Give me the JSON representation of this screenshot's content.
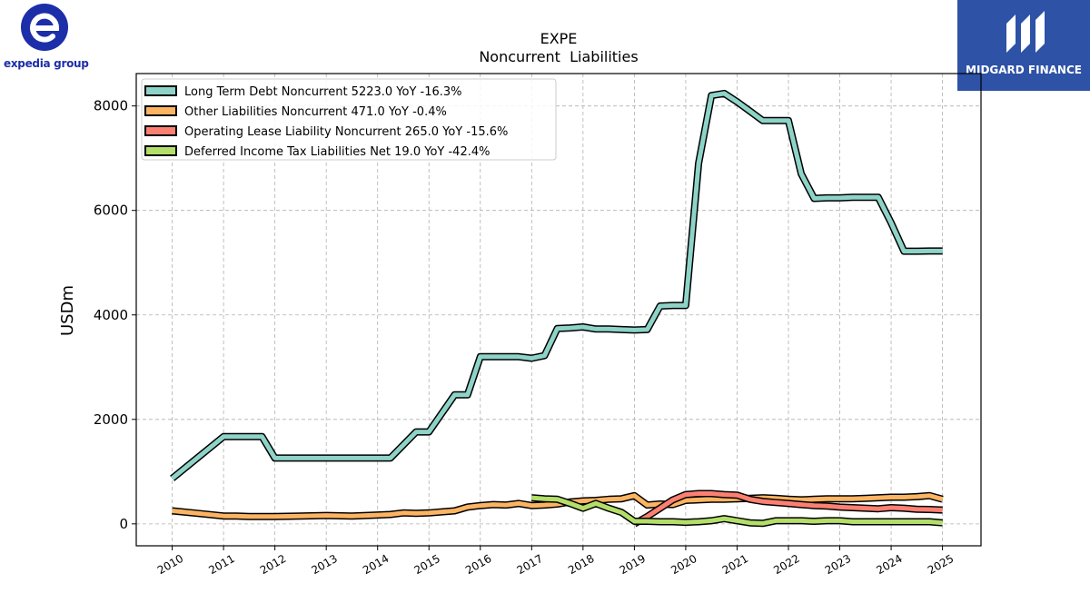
{
  "logos": {
    "left_text": "expedia group",
    "right_text": "MIDGARD FINANCE"
  },
  "chart_data": {
    "type": "line",
    "title": "EXPE",
    "subtitle": "Noncurrent  Liabilities",
    "xlabel": "",
    "ylabel": "USDm",
    "xlim": [
      2009.3,
      2025.75
    ],
    "ylim": [
      -420,
      8620
    ],
    "yticks": [
      0,
      2000,
      4000,
      6000,
      8000
    ],
    "xticks": [
      2010,
      2011,
      2012,
      2013,
      2014,
      2015,
      2016,
      2017,
      2018,
      2019,
      2020,
      2021,
      2022,
      2023,
      2024,
      2025
    ],
    "grid": true,
    "legend_position": "top-left",
    "series": [
      {
        "name": "Long Term Debt Noncurrent  5223.0 YoY -16.3%",
        "color": "#8dd3c7",
        "x": [
          2010.0,
          2011.0,
          2011.75,
          2012.0,
          2013.0,
          2014.0,
          2014.25,
          2014.75,
          2015.0,
          2015.5,
          2015.75,
          2016.0,
          2016.5,
          2016.75,
          2017.0,
          2017.25,
          2017.5,
          2017.75,
          2018.0,
          2018.25,
          2018.5,
          2018.75,
          2019.0,
          2019.25,
          2019.5,
          2019.75,
          2020.0,
          2020.25,
          2020.5,
          2020.75,
          2021.0,
          2021.25,
          2021.5,
          2021.75,
          2022.0,
          2022.25,
          2022.5,
          2022.75,
          2023.0,
          2023.25,
          2023.5,
          2023.75,
          2024.0,
          2024.25,
          2024.5,
          2024.75,
          2025.0
        ],
        "y": [
          870,
          1670,
          1670,
          1260,
          1260,
          1260,
          1260,
          1760,
          1760,
          2470,
          2470,
          3200,
          3200,
          3200,
          3170,
          3220,
          3740,
          3750,
          3770,
          3730,
          3730,
          3720,
          3710,
          3720,
          4170,
          4180,
          4180,
          6900,
          8200,
          8240,
          8080,
          7900,
          7720,
          7720,
          7720,
          6700,
          6230,
          6240,
          6240,
          6250,
          6250,
          6250,
          5760,
          5220,
          5220,
          5223,
          5223
        ]
      },
      {
        "name": "Other Liabilities Noncurrent  471.0 YoY -0.4%",
        "color": "#fdb462",
        "x": [
          2010.0,
          2010.5,
          2011.0,
          2011.25,
          2011.5,
          2012.0,
          2012.5,
          2013.0,
          2013.5,
          2014.0,
          2014.25,
          2014.5,
          2014.75,
          2015.0,
          2015.25,
          2015.5,
          2015.75,
          2016.0,
          2016.25,
          2016.5,
          2016.75,
          2017.0,
          2017.25,
          2017.5,
          2017.75,
          2018.0,
          2018.25,
          2018.5,
          2018.75,
          2019.0,
          2019.25,
          2019.5,
          2019.75,
          2020.0,
          2020.25,
          2020.5,
          2020.75,
          2021.0,
          2021.25,
          2021.5,
          2021.75,
          2022.0,
          2022.25,
          2022.5,
          2022.75,
          2023.0,
          2023.25,
          2023.5,
          2023.75,
          2024.0,
          2024.25,
          2024.5,
          2024.75,
          2025.0
        ],
        "y": [
          250,
          200,
          150,
          150,
          140,
          140,
          150,
          160,
          150,
          170,
          180,
          210,
          200,
          210,
          230,
          250,
          320,
          350,
          370,
          360,
          390,
          350,
          360,
          380,
          420,
          440,
          450,
          470,
          480,
          540,
          360,
          380,
          370,
          450,
          460,
          470,
          470,
          480,
          490,
          500,
          490,
          470,
          460,
          470,
          480,
          480,
          480,
          490,
          500,
          510,
          510,
          520,
          540,
          471
        ]
      },
      {
        "name": "Operating Lease Liability Noncurrent  265.0 YoY -15.6%",
        "color": "#fb8072",
        "x": [
          2019.0,
          2019.25,
          2019.5,
          2019.75,
          2020.0,
          2020.25,
          2020.5,
          2020.75,
          2021.0,
          2021.25,
          2021.5,
          2021.75,
          2022.0,
          2022.25,
          2022.5,
          2022.75,
          2023.0,
          2023.25,
          2023.5,
          2023.75,
          2024.0,
          2024.25,
          2024.5,
          2024.75,
          2025.0
        ],
        "y": [
          0,
          140,
          300,
          460,
          560,
          580,
          580,
          560,
          550,
          470,
          430,
          410,
          390,
          370,
          350,
          340,
          320,
          310,
          300,
          290,
          310,
          300,
          280,
          275,
          265
        ]
      },
      {
        "name": "Deferred Income Tax Liabilities Net  19.0 YoY -42.4%",
        "color": "#b3de69",
        "x": [
          2017.0,
          2017.25,
          2017.5,
          2017.75,
          2018.0,
          2018.25,
          2018.5,
          2018.75,
          2019.0,
          2019.25,
          2019.5,
          2019.75,
          2020.0,
          2020.25,
          2020.5,
          2020.75,
          2021.0,
          2021.25,
          2021.5,
          2021.75,
          2022.0,
          2022.25,
          2022.5,
          2022.75,
          2023.0,
          2023.25,
          2023.5,
          2023.75,
          2024.0,
          2024.25,
          2024.5,
          2024.75,
          2025.0
        ],
        "y": [
          500,
          480,
          470,
          390,
          300,
          390,
          300,
          220,
          50,
          50,
          40,
          40,
          30,
          40,
          60,
          100,
          60,
          20,
          10,
          60,
          60,
          60,
          50,
          60,
          60,
          40,
          40,
          40,
          40,
          40,
          40,
          40,
          19
        ]
      }
    ]
  }
}
